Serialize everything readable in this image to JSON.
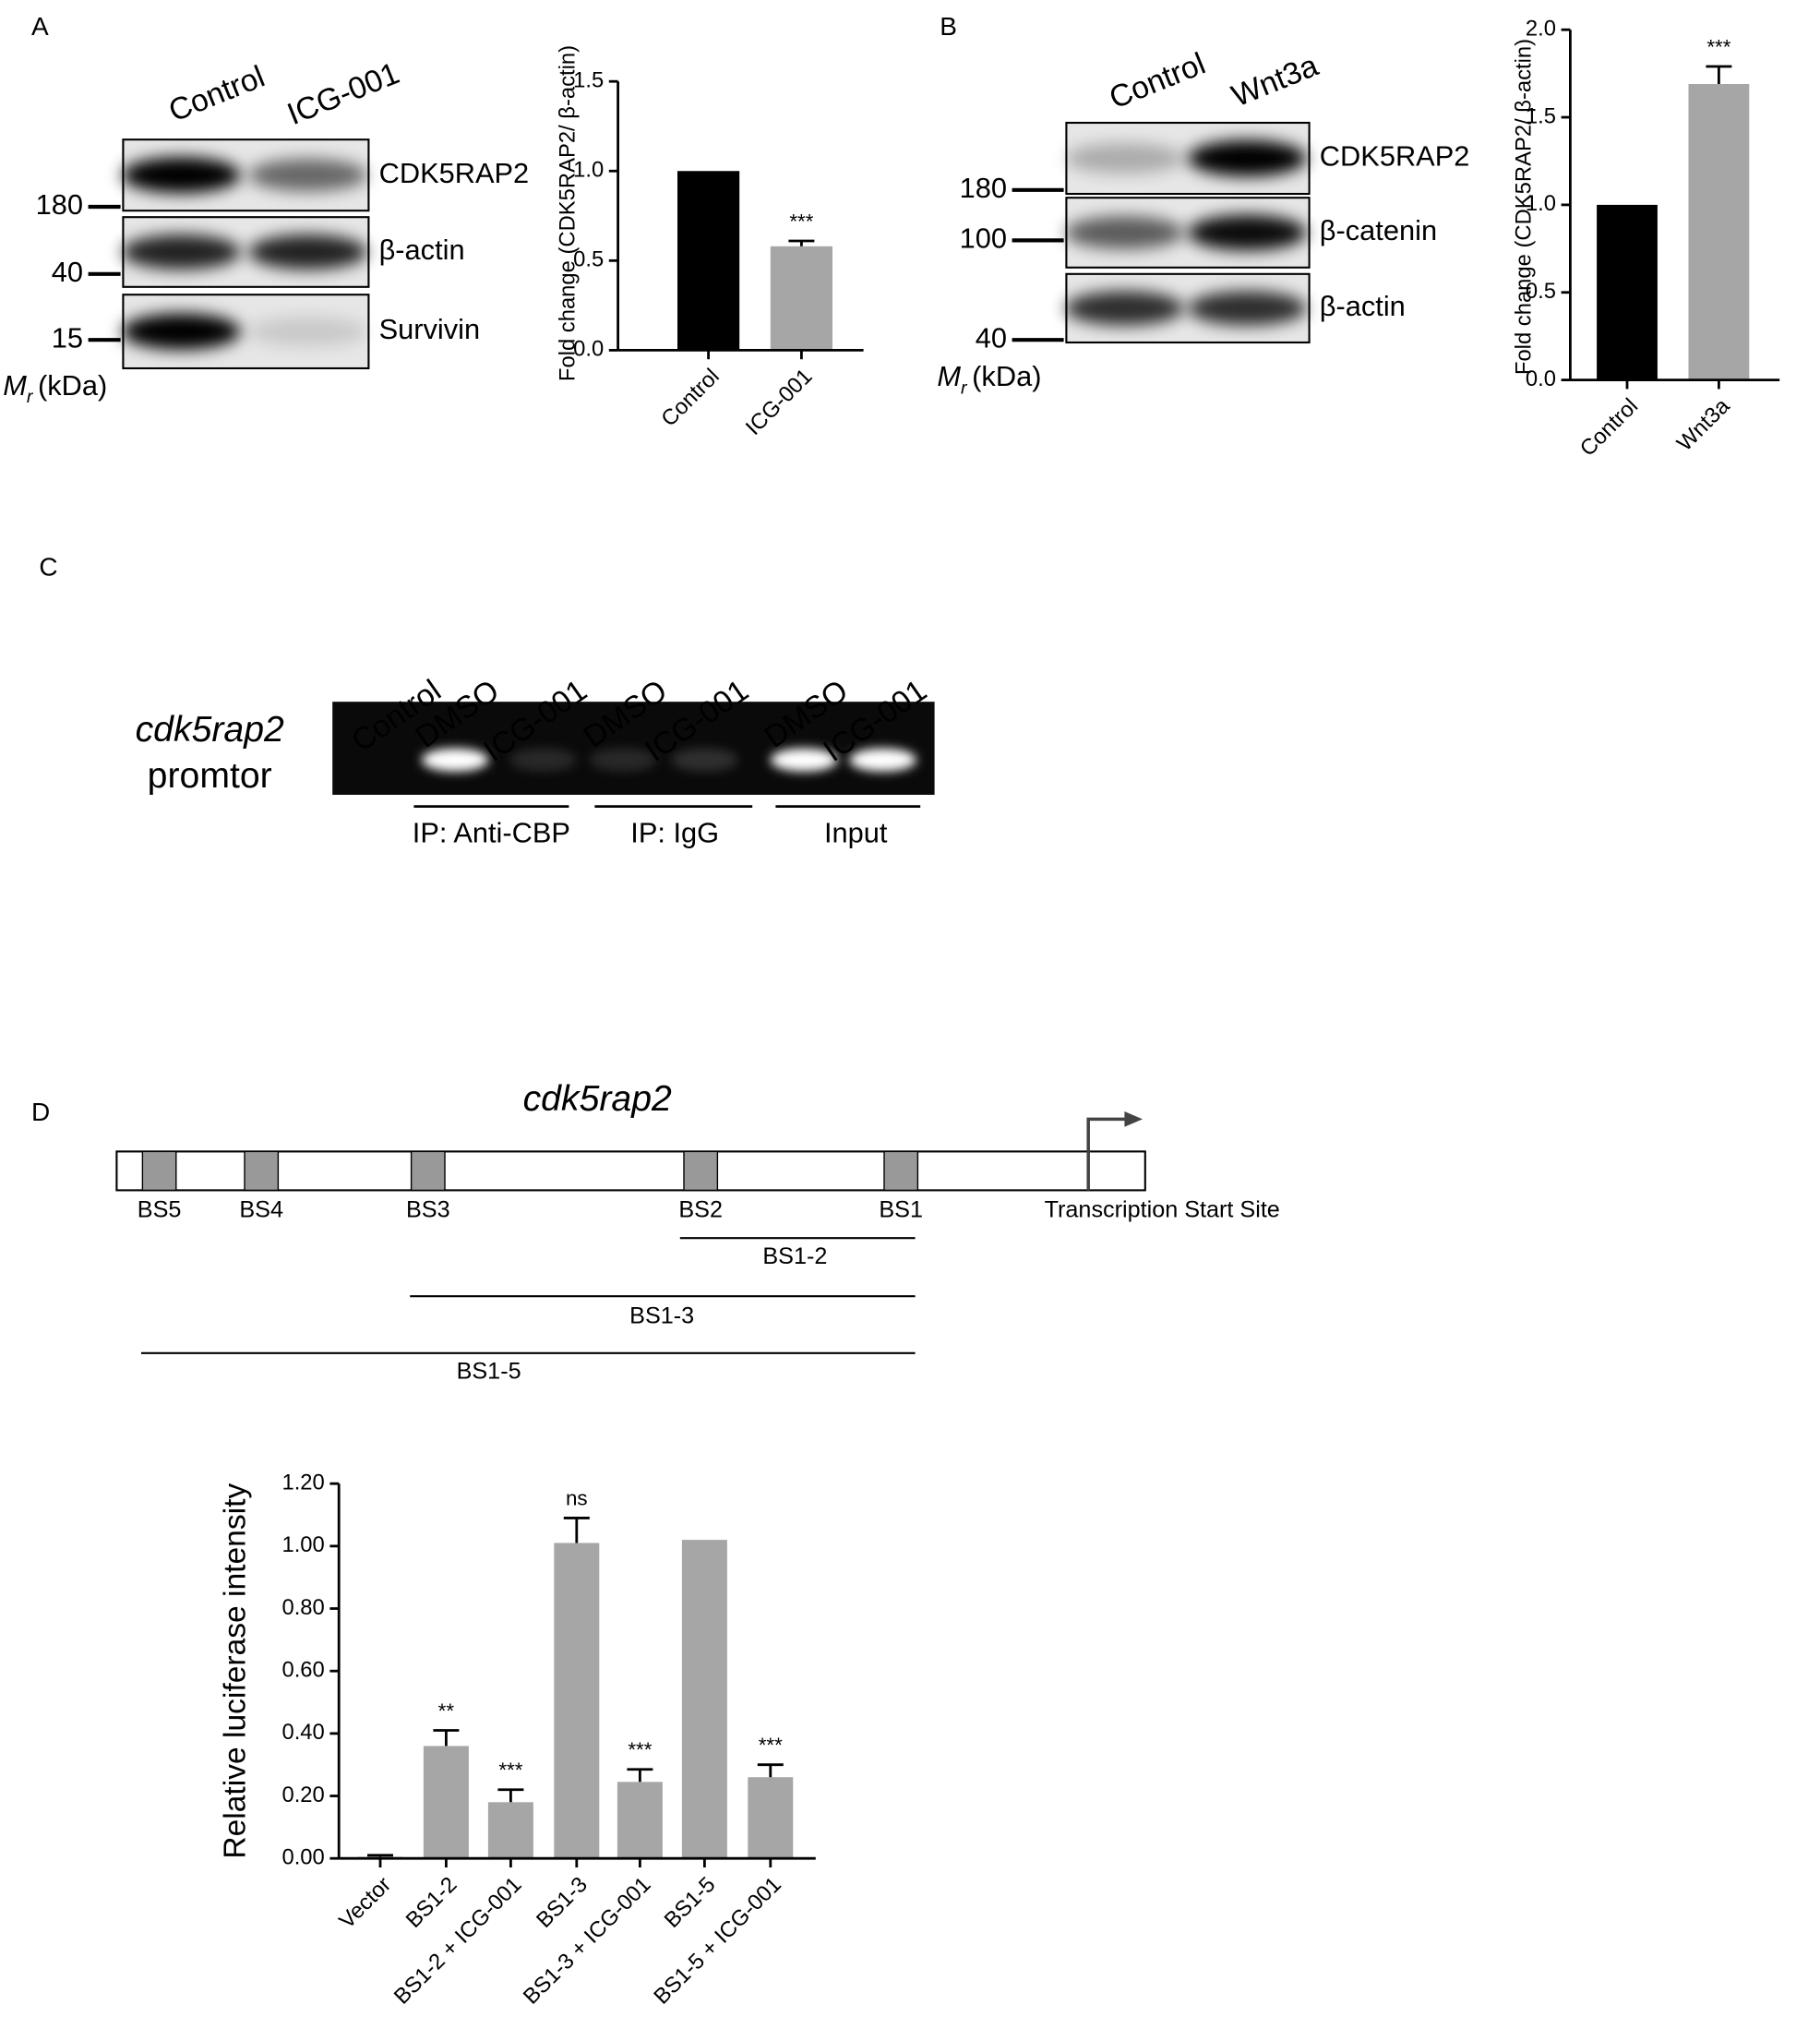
{
  "panels": {
    "a": "A",
    "b": "B",
    "c": "C",
    "d": "D"
  },
  "mr": {
    "symbol": "M",
    "subscript": "r",
    "unit": "(kDa)"
  },
  "blot_a": {
    "lanes": [
      "Control",
      "ICG-001"
    ],
    "proteins": [
      "CDK5RAP2",
      "β-actin",
      "Survivin"
    ],
    "markers": [
      "180",
      "40",
      "15"
    ]
  },
  "blot_b": {
    "lanes": [
      "Control",
      "Wnt3a"
    ],
    "proteins": [
      "CDK5RAP2",
      "β-catenin",
      "β-actin"
    ],
    "markers": [
      "180",
      "100",
      "40"
    ]
  },
  "gel_c": {
    "lanes": [
      "Control",
      "DMSO",
      "ICG-001",
      "DMSO",
      "ICG-001",
      "DMSO",
      "ICG-001"
    ],
    "target": [
      "cdk5rap2",
      "promtor"
    ],
    "groups": [
      "IP: Anti-CBP",
      "IP: IgG",
      "Input"
    ]
  },
  "diagram_d": {
    "gene": "cdk5rap2",
    "sites": [
      "BS5",
      "BS4",
      "BS3",
      "BS2",
      "BS1"
    ],
    "tss": "Transcription Start Site",
    "fragments": [
      "BS1-2",
      "BS1-3",
      "BS1-5"
    ]
  },
  "chart_data": [
    {
      "type": "bar",
      "categories": [
        "Control",
        "ICG-001"
      ],
      "values": [
        1.0,
        0.58
      ],
      "errors": [
        null,
        0.03
      ],
      "annotations": [
        null,
        "***"
      ],
      "colors": [
        "#000000",
        "#a6a6a6"
      ],
      "y_label": "Fold change (CDK5RAP2/ β-actin)",
      "ylim": [
        0,
        1.5
      ],
      "yticks": [
        {
          "value": 0,
          "label": "0.0"
        },
        0.5,
        {
          "value": 1,
          "label": "1.0"
        },
        1.5
      ]
    },
    {
      "type": "bar",
      "categories": [
        "Control",
        "Wnt3a"
      ],
      "values": [
        1.0,
        1.69
      ],
      "errors": [
        null,
        0.1
      ],
      "annotations": [
        null,
        "***"
      ],
      "colors": [
        "#000000",
        "#a6a6a6"
      ],
      "y_label": "Fold change (CDK5RAP2/ β-actin)",
      "ylim": [
        0,
        2.0
      ],
      "yticks": [
        {
          "value": 0,
          "label": "0.0"
        },
        0.5,
        {
          "value": 1,
          "label": "1.0"
        },
        1.5,
        {
          "value": 2,
          "label": "2.0"
        }
      ]
    },
    {
      "type": "bar",
      "categories": [
        "Vector",
        "BS1-2",
        "BS1-2 + ICG-001",
        "BS1-3",
        "BS1-3 + ICG-001",
        "BS1-5",
        "BS1-5 + ICG-001"
      ],
      "values": [
        0.005,
        0.36,
        0.18,
        1.01,
        0.245,
        1.02,
        0.26
      ],
      "errors": [
        0.005,
        0.05,
        0.04,
        0.08,
        0.04,
        null,
        0.04
      ],
      "annotations": [
        null,
        "**",
        "***",
        "ns",
        "***",
        null,
        "***"
      ],
      "colors": [
        "#a6a6a6",
        "#a6a6a6",
        "#a6a6a6",
        "#a6a6a6",
        "#a6a6a6",
        "#a6a6a6",
        "#a6a6a6"
      ],
      "y_label": "Relative luciferase intensity",
      "ylim": [
        0,
        1.2
      ],
      "yticks": [
        {
          "value": 0,
          "label": "0.00"
        },
        {
          "value": 0.2,
          "label": "0.20"
        },
        {
          "value": 0.4,
          "label": "0.40"
        },
        {
          "value": 0.6,
          "label": "0.60"
        },
        {
          "value": 0.8,
          "label": "0.80"
        },
        {
          "value": 1,
          "label": "1.00"
        },
        {
          "value": 1.2,
          "label": "1.20"
        }
      ]
    }
  ]
}
